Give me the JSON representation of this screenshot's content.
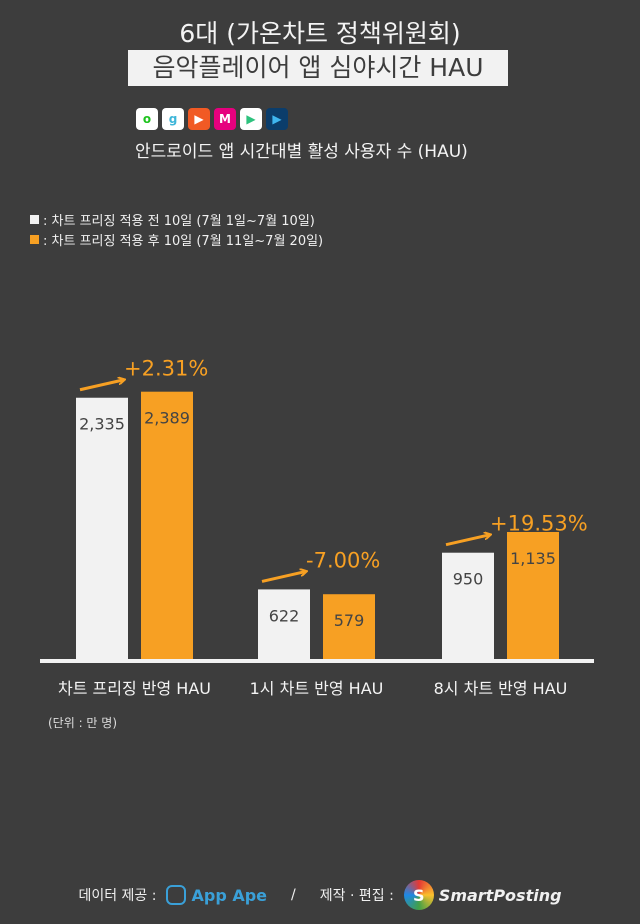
{
  "header": {
    "title": "6대 (가온차트 정책위원회)",
    "subtitle_box": "음악플레이어 앱 심야시간 HAU",
    "app_icons": [
      {
        "name": "melon-icon",
        "color": "#ffffff",
        "glyph": "o",
        "fg": "#1ec31e"
      },
      {
        "name": "genie-icon",
        "color": "#ffffff",
        "glyph": "g",
        "fg": "#3fb6d9"
      },
      {
        "name": "flo-icon",
        "color": "#f15a24",
        "glyph": "▶",
        "fg": "#ffffff"
      },
      {
        "name": "mnet-icon",
        "color": "#e6007e",
        "glyph": "M",
        "fg": "#ffffff"
      },
      {
        "name": "soribada-icon",
        "color": "#ffffff",
        "glyph": "▶",
        "fg": "#2ec27e"
      },
      {
        "name": "vibe-icon",
        "color": "#0b3d6b",
        "glyph": "▶",
        "fg": "#3fb6f0"
      }
    ],
    "description": "안드로이드 앱 시간대별 활성 사용자 수 (HAU)"
  },
  "chart_data": {
    "type": "bar",
    "categories": [
      "차트 프리징 반영 HAU",
      "1시 차트 반영 HAU",
      "8시 차트 반영 HAU"
    ],
    "series": [
      {
        "name": ": 차트 프리징 적용 전 10일 (7월 1일~7월 10일)",
        "values": [
          2335,
          622,
          950
        ],
        "labels": [
          "2,335",
          "622",
          "950"
        ],
        "color": "#f2f2f2"
      },
      {
        "name": ": 차트 프리징 적용 후 10일 (7월 11일~7월 20일)",
        "values": [
          2389,
          579,
          1135
        ],
        "labels": [
          "2,389",
          "579",
          "1,135"
        ],
        "color": "#f7a023"
      }
    ],
    "annotations": [
      "+2.31%",
      "-7.00%",
      "+19.53%"
    ],
    "annotation_color": "#f7a023",
    "unit": "(단위 : 만 명)",
    "legend_position": "top-left",
    "grid": false
  },
  "footer": {
    "data_label": "데이터 제공 :",
    "data_provider": "App Ape",
    "separator": "/",
    "made_label": "제작 · 편집 :",
    "maker": "SmartPosting"
  }
}
